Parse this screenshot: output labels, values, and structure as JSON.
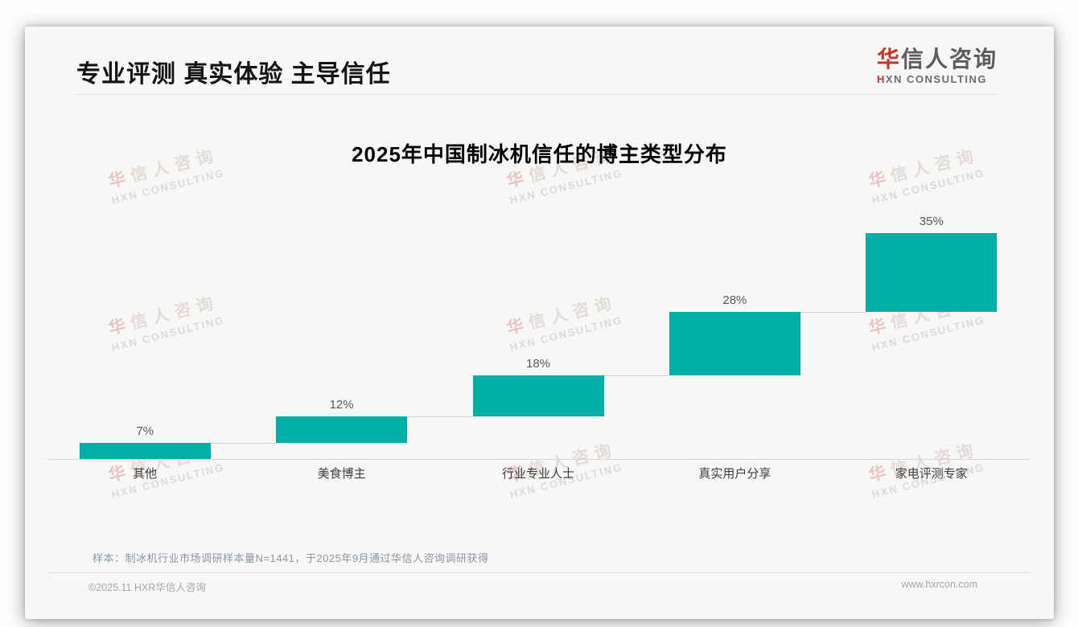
{
  "page": {
    "header": {
      "title": "专业评测 真实体验 主导信任"
    },
    "logo": {
      "zh_first": "华",
      "zh_rest": "信人咨询",
      "en_first": "H",
      "en_rest": "XN CONSULTING"
    },
    "watermark": {
      "zh_first": "华",
      "zh_rest": "信人咨询",
      "en": "HXN CONSULTING"
    },
    "footnote": "样本：制冰机行业市场调研样本量N=1441，于2025年9月通过华信人咨询调研获得",
    "footer": {
      "copyright": "©2025.11 HXR华信人咨询",
      "website": "www.hxrcon.com"
    }
  },
  "chart_data": {
    "type": "bar",
    "subtype": "waterfall",
    "title": "2025年中国制冰机信任的博主类型分布",
    "categories": [
      "其他",
      "美食博主",
      "行业专业人士",
      "真实用户分享",
      "家电评测专家"
    ],
    "values": [
      7,
      12,
      18,
      28,
      35
    ],
    "value_labels": [
      "7%",
      "12%",
      "18%",
      "28%",
      "35%"
    ],
    "cumulative_segments": [
      [
        0,
        7
      ],
      [
        7,
        19
      ],
      [
        19,
        37
      ],
      [
        37,
        65
      ],
      [
        65,
        100
      ]
    ],
    "xlabel": "",
    "ylabel": "",
    "ylim": [
      0,
      100
    ],
    "grid": false,
    "legend": false,
    "bar_color": "#00B0A5",
    "value_label_color": "#595959",
    "axis_color": "#d6d6d6"
  }
}
